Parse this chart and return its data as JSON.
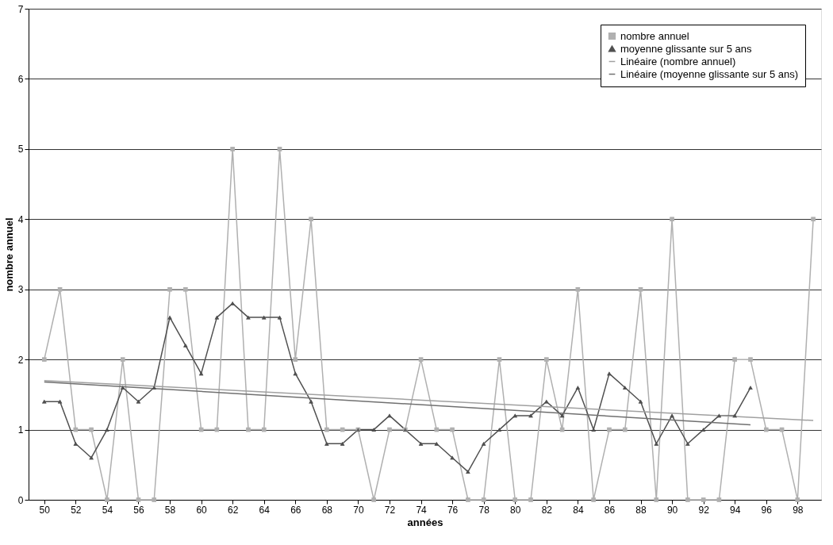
{
  "chart_data": {
    "type": "line",
    "xlabel": "années",
    "ylabel": "nombre annuel",
    "xlim": [
      1949,
      1999.5
    ],
    "ylim": [
      0,
      7
    ],
    "yticks": [
      0,
      1,
      2,
      3,
      4,
      5,
      6,
      7
    ],
    "xticks": [
      {
        "value": 1950,
        "label": "50"
      },
      {
        "value": 1952,
        "label": "52"
      },
      {
        "value": 1954,
        "label": "54"
      },
      {
        "value": 1956,
        "label": "56"
      },
      {
        "value": 1958,
        "label": "58"
      },
      {
        "value": 1960,
        "label": "60"
      },
      {
        "value": 1962,
        "label": "62"
      },
      {
        "value": 1964,
        "label": "64"
      },
      {
        "value": 1966,
        "label": "66"
      },
      {
        "value": 1968,
        "label": "68"
      },
      {
        "value": 1970,
        "label": "70"
      },
      {
        "value": 1972,
        "label": "72"
      },
      {
        "value": 1974,
        "label": "74"
      },
      {
        "value": 1976,
        "label": "76"
      },
      {
        "value": 1978,
        "label": "78"
      },
      {
        "value": 1980,
        "label": "80"
      },
      {
        "value": 1982,
        "label": "82"
      },
      {
        "value": 1984,
        "label": "84"
      },
      {
        "value": 1986,
        "label": "86"
      },
      {
        "value": 1988,
        "label": "88"
      },
      {
        "value": 1990,
        "label": "90"
      },
      {
        "value": 1992,
        "label": "92"
      },
      {
        "value": 1994,
        "label": "94"
      },
      {
        "value": 1996,
        "label": "96"
      },
      {
        "value": 1998,
        "label": "98"
      }
    ],
    "grid": "y",
    "legend": "top right",
    "series": [
      {
        "name": "nombre annuel",
        "color": "#b0b0b0",
        "marker": "square",
        "x": [
          1950,
          1951,
          1952,
          1953,
          1954,
          1955,
          1956,
          1957,
          1958,
          1959,
          1960,
          1961,
          1962,
          1963,
          1964,
          1965,
          1966,
          1967,
          1968,
          1969,
          1970,
          1971,
          1972,
          1973,
          1974,
          1975,
          1976,
          1977,
          1978,
          1979,
          1980,
          1981,
          1982,
          1983,
          1984,
          1985,
          1986,
          1987,
          1988,
          1989,
          1990,
          1991,
          1992,
          1993,
          1994,
          1995,
          1996,
          1997,
          1998,
          1999
        ],
        "values": [
          2,
          3,
          1,
          1,
          0,
          2,
          0,
          0,
          3,
          3,
          1,
          1,
          5,
          1,
          1,
          5,
          2,
          4,
          1,
          1,
          1,
          0,
          1,
          1,
          2,
          1,
          1,
          0,
          0,
          2,
          0,
          0,
          2,
          1,
          3,
          0,
          1,
          1,
          3,
          0,
          4,
          0,
          0,
          0,
          2,
          2,
          1,
          1,
          0,
          4
        ]
      },
      {
        "name": "moyenne glissante sur 5 ans",
        "color": "#505050",
        "marker": "triangle",
        "x": [
          1950,
          1951,
          1952,
          1953,
          1954,
          1955,
          1956,
          1957,
          1958,
          1959,
          1960,
          1961,
          1962,
          1963,
          1964,
          1965,
          1966,
          1967,
          1968,
          1969,
          1970,
          1971,
          1972,
          1973,
          1974,
          1975,
          1976,
          1977,
          1978,
          1979,
          1980,
          1981,
          1982,
          1983,
          1984,
          1985,
          1986,
          1987,
          1988,
          1989,
          1990,
          1991,
          1992,
          1993,
          1994,
          1995
        ],
        "values": [
          1.4,
          1.4,
          0.8,
          0.6,
          1.0,
          1.6,
          1.4,
          1.6,
          2.6,
          2.2,
          1.8,
          2.6,
          2.8,
          2.6,
          2.6,
          2.6,
          1.8,
          1.4,
          0.8,
          0.8,
          1.0,
          1.0,
          1.2,
          1.0,
          0.8,
          0.8,
          0.6,
          0.4,
          0.8,
          1.0,
          1.2,
          1.2,
          1.4,
          1.2,
          1.6,
          1.0,
          1.8,
          1.6,
          1.4,
          0.8,
          1.2,
          0.8,
          1.0,
          1.2,
          1.2,
          1.6
        ]
      },
      {
        "name": "Linéaire (nombre annuel)",
        "color": "#a0a0a0",
        "marker": "none",
        "x": [
          1950,
          1999
        ],
        "values": [
          1.7,
          1.13
        ]
      },
      {
        "name": "Linéaire (moyenne glissante sur 5 ans)",
        "color": "#707070",
        "marker": "none",
        "x": [
          1950,
          1995
        ],
        "values": [
          1.68,
          1.07
        ]
      }
    ]
  }
}
